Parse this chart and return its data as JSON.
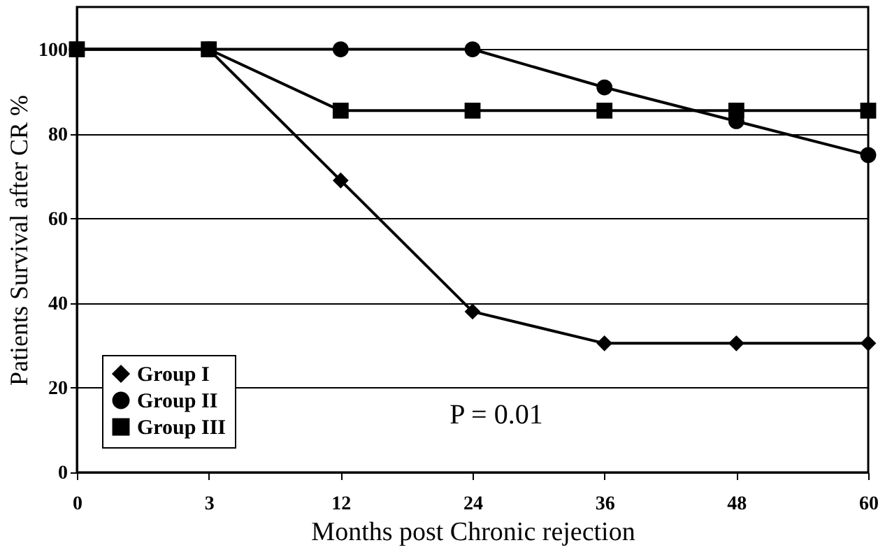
{
  "chart_data": {
    "type": "line",
    "xlabel": "Months post Chronic rejection",
    "ylabel": "Patients Survival after CR %",
    "categories": [
      "0",
      "3",
      "12",
      "24",
      "36",
      "48",
      "60"
    ],
    "series": [
      {
        "name": "Group I",
        "color": "#000000",
        "marker": "diamond",
        "values": [
          100,
          100,
          69,
          38,
          30.5,
          30.5,
          30.5
        ]
      },
      {
        "name": "Group II",
        "color": "#000000",
        "marker": "circle",
        "values": [
          100,
          100,
          100,
          100,
          91,
          83,
          75
        ]
      },
      {
        "name": "Group III",
        "color": "#000000",
        "marker": "square",
        "values": [
          100,
          100,
          85.5,
          85.5,
          85.5,
          85.5,
          85.5
        ]
      }
    ],
    "ylim": [
      0,
      110
    ],
    "yticks": [
      0,
      20,
      40,
      60,
      80,
      100
    ],
    "grid": "y",
    "legend": "bottom left",
    "annotations": [
      "P = 0.01"
    ]
  }
}
